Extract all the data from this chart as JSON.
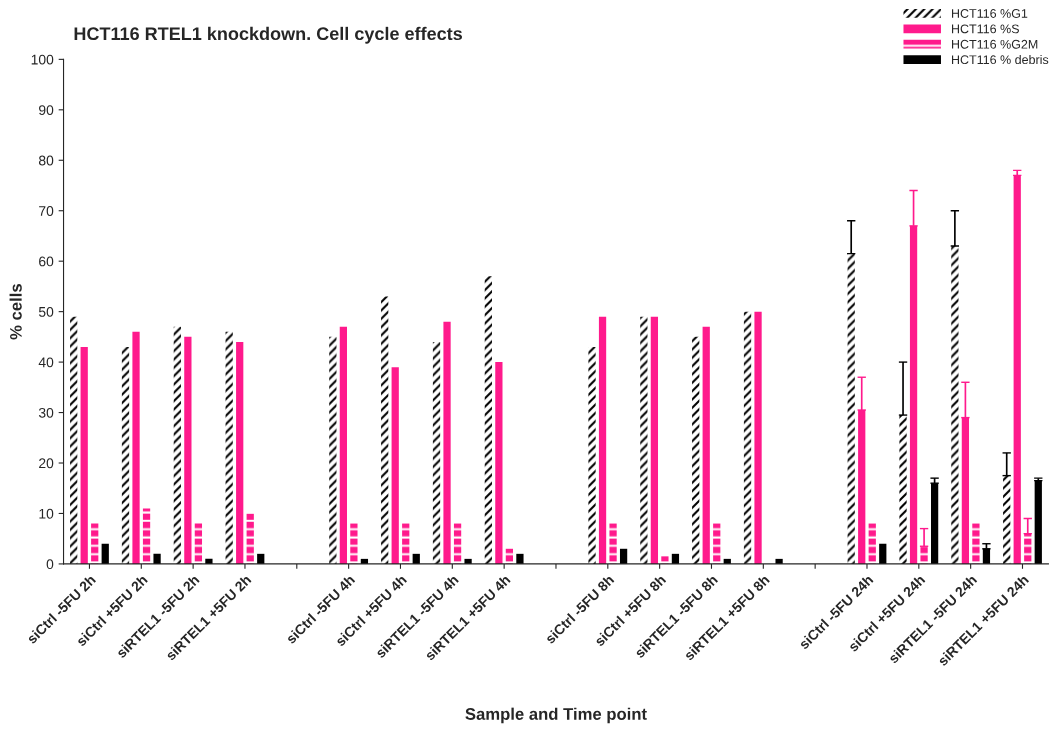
{
  "chart_data": {
    "type": "bar",
    "title": "HCT116 RTEL1 knockdown. Cell cycle effects",
    "xlabel": "Sample and Time point",
    "ylabel": "% cells",
    "categories": [
      "siCtrl -5FU 2h",
      "siCtrl +5FU 2h",
      "siRTEL1 -5FU 2h",
      "siRTEL1 +5FU 2h",
      null,
      "siCtrl -5FU 4h",
      "siCtrl +5FU 4h",
      "siRTEL1 -5FU 4h",
      "siRTEL1 +5FU 4h",
      null,
      "siCtrl -5FU 8h",
      "siCtrl +5FU 8h",
      "siRTEL1 -5FU 8h",
      "siRTEL1 +5FU 8h",
      null,
      "siCtrl -5FU 24h",
      "siCtrl +5FU 24h",
      "siRTEL1 -5FU 24h",
      "siRTEL1 +5FU 24h"
    ],
    "series": [
      {
        "name": "HCT116 %G1",
        "color": "#000000",
        "values": [
          49,
          43,
          47,
          46,
          null,
          45,
          53,
          44,
          57,
          null,
          43,
          49,
          45,
          50,
          null,
          61.5,
          29.5,
          63,
          17.5
        ],
        "errors": [
          null,
          null,
          null,
          null,
          null,
          null,
          null,
          null,
          null,
          null,
          null,
          null,
          null,
          null,
          null,
          [
            61.5,
            68
          ],
          [
            29.5,
            40
          ],
          [
            63,
            70
          ],
          [
            17.5,
            22
          ]
        ]
      },
      {
        "name": "HCT116 %S",
        "color": "#ff1a8c",
        "values": [
          43,
          46,
          45,
          44,
          null,
          47,
          39,
          48,
          40,
          null,
          49,
          49,
          47,
          50,
          null,
          30.5,
          67,
          29,
          77
        ],
        "errors": [
          null,
          null,
          null,
          null,
          null,
          null,
          null,
          null,
          null,
          null,
          null,
          null,
          null,
          null,
          null,
          [
            30.5,
            37
          ],
          [
            67,
            74
          ],
          [
            29,
            36
          ],
          [
            77,
            78
          ]
        ]
      },
      {
        "name": "HCT116 %G2M",
        "color": "#ff1a8c",
        "values": [
          8,
          11,
          8,
          10,
          null,
          8,
          8,
          8,
          3,
          null,
          8,
          1.5,
          8,
          0,
          null,
          8,
          3.5,
          8,
          6
        ],
        "errors": [
          null,
          null,
          null,
          null,
          null,
          null,
          null,
          null,
          null,
          null,
          null,
          null,
          null,
          null,
          null,
          null,
          [
            3.5,
            7
          ],
          null,
          [
            6,
            9
          ]
        ]
      },
      {
        "name": "HCT116 % debris",
        "color": "#000000",
        "values": [
          4,
          2,
          1,
          2,
          null,
          1,
          2,
          1,
          2,
          null,
          3,
          2,
          1,
          1,
          null,
          4,
          16,
          3,
          16.5
        ],
        "errors": [
          null,
          null,
          null,
          null,
          null,
          null,
          null,
          null,
          null,
          null,
          null,
          null,
          null,
          null,
          null,
          null,
          [
            16,
            17
          ],
          [
            3,
            4
          ],
          [
            16.5,
            17
          ]
        ]
      }
    ],
    "ylim": [
      0,
      100
    ],
    "yticks": [
      0,
      10,
      20,
      30,
      40,
      50,
      60,
      70,
      80,
      90,
      100
    ],
    "grid": false,
    "legend": "top right"
  }
}
